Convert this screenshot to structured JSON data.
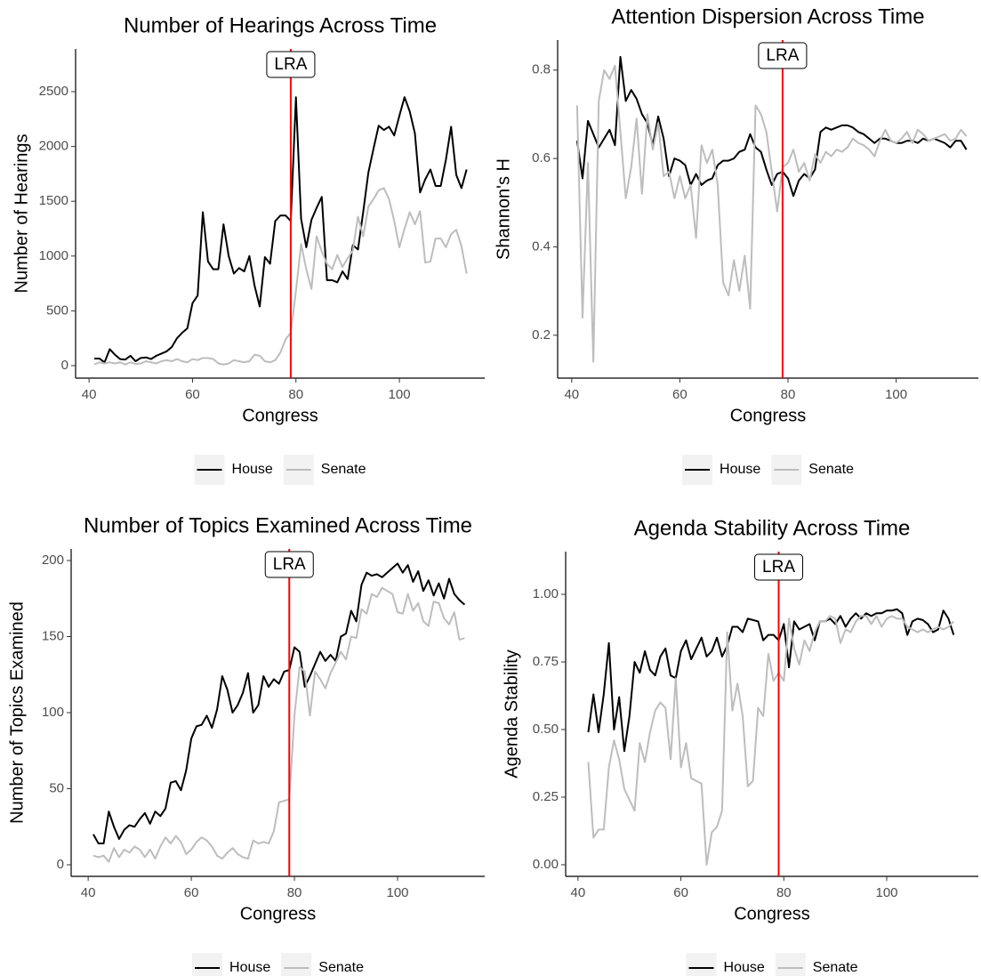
{
  "chart_data": [
    {
      "type": "line",
      "title": "Number of Hearings Across Time",
      "xlabel": "Congress",
      "ylabel": "Number of Hearings",
      "x": [
        41,
        42,
        43,
        44,
        45,
        46,
        47,
        48,
        49,
        50,
        51,
        52,
        53,
        54,
        55,
        56,
        57,
        58,
        59,
        60,
        61,
        62,
        63,
        64,
        65,
        66,
        67,
        68,
        69,
        70,
        71,
        72,
        73,
        74,
        75,
        76,
        77,
        78,
        79,
        80,
        81,
        82,
        83,
        84,
        85,
        86,
        87,
        88,
        89,
        90,
        91,
        92,
        93,
        94,
        95,
        96,
        97,
        98,
        99,
        100,
        101,
        102,
        103,
        104,
        105,
        106,
        107,
        108,
        109,
        110,
        111,
        112,
        113
      ],
      "series": [
        {
          "name": "House",
          "color": "#000000",
          "values": [
            65,
            65,
            30,
            150,
            100,
            60,
            55,
            90,
            40,
            70,
            75,
            60,
            90,
            110,
            130,
            170,
            250,
            300,
            340,
            570,
            640,
            1400,
            950,
            880,
            880,
            1290,
            1000,
            840,
            890,
            860,
            1000,
            730,
            540,
            990,
            930,
            1320,
            1370,
            1370,
            1320,
            2450,
            1340,
            1080,
            1330,
            1440,
            1540,
            780,
            780,
            760,
            860,
            790,
            1100,
            1060,
            1400,
            1760,
            1980,
            2190,
            2150,
            2180,
            2100,
            2280,
            2450,
            2320,
            2120,
            1580,
            1700,
            1790,
            1640,
            1640,
            1880,
            2180,
            1740,
            1620,
            1790
          ]
        },
        {
          "name": "Senate",
          "color": "#bdbdbd",
          "values": [
            10,
            30,
            20,
            30,
            20,
            30,
            10,
            30,
            15,
            20,
            40,
            30,
            20,
            40,
            50,
            40,
            60,
            40,
            30,
            60,
            50,
            70,
            70,
            60,
            20,
            10,
            20,
            50,
            40,
            30,
            40,
            100,
            90,
            40,
            30,
            50,
            120,
            240,
            300,
            680,
            1110,
            880,
            700,
            1180,
            1040,
            930,
            880,
            1010,
            900,
            980,
            1050,
            1360,
            1180,
            1450,
            1520,
            1600,
            1620,
            1520,
            1320,
            1080,
            1250,
            1400,
            1290,
            1410,
            940,
            950,
            1160,
            1160,
            1080,
            1200,
            1240,
            1090,
            840
          ]
        }
      ],
      "xlim": [
        37.4,
        116.5
      ],
      "ylim": [
        -114,
        2890
      ],
      "xticks": [
        40,
        60,
        80,
        100
      ],
      "yticks": [
        0,
        500,
        1000,
        1500,
        2000,
        2500
      ],
      "vline": {
        "x": 79,
        "label": "LRA",
        "color": "#ff0000"
      },
      "legend": "bottom"
    },
    {
      "type": "line",
      "title": "Attention Dispersion Across Time",
      "xlabel": "Congress",
      "ylabel": "Shannon's H",
      "x": [
        41,
        42,
        43,
        44,
        45,
        46,
        47,
        48,
        49,
        50,
        51,
        52,
        53,
        54,
        55,
        56,
        57,
        58,
        59,
        60,
        61,
        62,
        63,
        64,
        65,
        66,
        67,
        68,
        69,
        70,
        71,
        72,
        73,
        74,
        75,
        76,
        77,
        78,
        79,
        80,
        81,
        82,
        83,
        84,
        85,
        86,
        87,
        88,
        89,
        90,
        91,
        92,
        93,
        94,
        95,
        96,
        97,
        98,
        99,
        100,
        101,
        102,
        103,
        104,
        105,
        106,
        107,
        108,
        109,
        110,
        111,
        112,
        113
      ],
      "series": [
        {
          "name": "House",
          "color": "#000000",
          "values": [
            0.64,
            0.555,
            0.685,
            0.655,
            0.625,
            0.645,
            0.665,
            0.63,
            0.83,
            0.73,
            0.755,
            0.735,
            0.7,
            0.68,
            0.63,
            0.695,
            0.645,
            0.56,
            0.6,
            0.595,
            0.585,
            0.54,
            0.565,
            0.54,
            0.55,
            0.555,
            0.585,
            0.595,
            0.595,
            0.6,
            0.615,
            0.62,
            0.655,
            0.625,
            0.615,
            0.575,
            0.54,
            0.565,
            0.57,
            0.555,
            0.515,
            0.55,
            0.565,
            0.555,
            0.575,
            0.66,
            0.67,
            0.665,
            0.67,
            0.675,
            0.675,
            0.67,
            0.66,
            0.655,
            0.645,
            0.635,
            0.645,
            0.645,
            0.64,
            0.635,
            0.635,
            0.64,
            0.64,
            0.635,
            0.645,
            0.64,
            0.645,
            0.64,
            0.635,
            0.625,
            0.64,
            0.64,
            0.62
          ]
        },
        {
          "name": "Senate",
          "color": "#bdbdbd",
          "values": [
            0.72,
            0.24,
            0.59,
            0.14,
            0.73,
            0.8,
            0.78,
            0.81,
            0.66,
            0.51,
            0.58,
            0.69,
            0.52,
            0.7,
            0.62,
            0.68,
            0.56,
            0.57,
            0.51,
            0.56,
            0.51,
            0.54,
            0.42,
            0.63,
            0.59,
            0.62,
            0.54,
            0.32,
            0.29,
            0.37,
            0.3,
            0.38,
            0.26,
            0.72,
            0.7,
            0.66,
            0.57,
            0.48,
            0.58,
            0.59,
            0.62,
            0.57,
            0.59,
            0.55,
            0.61,
            0.59,
            0.615,
            0.605,
            0.62,
            0.615,
            0.625,
            0.645,
            0.635,
            0.63,
            0.62,
            0.605,
            0.64,
            0.665,
            0.64,
            0.635,
            0.645,
            0.66,
            0.635,
            0.665,
            0.655,
            0.64,
            0.645,
            0.65,
            0.655,
            0.64,
            0.645,
            0.665,
            0.65
          ]
        }
      ],
      "xlim": [
        37.4,
        115.2
      ],
      "ylim": [
        0.103,
        0.868
      ],
      "xticks": [
        40,
        60,
        80,
        100
      ],
      "yticks": [
        0.2,
        0.4,
        0.6,
        0.8
      ],
      "vline": {
        "x": 79,
        "label": "LRA",
        "color": "#ff0000"
      },
      "legend": "bottom"
    },
    {
      "type": "line",
      "title": "Number of Topics Examined Across Time",
      "xlabel": "Congress",
      "ylabel": "Number of Topics Examined",
      "x": [
        41,
        42,
        43,
        44,
        45,
        46,
        47,
        48,
        49,
        50,
        51,
        52,
        53,
        54,
        55,
        56,
        57,
        58,
        59,
        60,
        61,
        62,
        63,
        64,
        65,
        66,
        67,
        68,
        69,
        70,
        71,
        72,
        73,
        74,
        75,
        76,
        77,
        78,
        79,
        80,
        81,
        82,
        83,
        84,
        85,
        86,
        87,
        88,
        89,
        90,
        91,
        92,
        93,
        94,
        95,
        96,
        97,
        98,
        99,
        100,
        101,
        102,
        103,
        104,
        105,
        106,
        107,
        108,
        109,
        110,
        111,
        112,
        113
      ],
      "series": [
        {
          "name": "House",
          "color": "#000000",
          "values": [
            20,
            14,
            14,
            35,
            25,
            17,
            23,
            26,
            25,
            30,
            34,
            27,
            35,
            32,
            37,
            54,
            55,
            49,
            62,
            83,
            91,
            92,
            98,
            90,
            102,
            124,
            115,
            100,
            105,
            113,
            126,
            100,
            105,
            124,
            117,
            122,
            119,
            127,
            128,
            143,
            140,
            117,
            124,
            132,
            140,
            134,
            138,
            134,
            150,
            152,
            167,
            160,
            184,
            192,
            190,
            191,
            189,
            192,
            195,
            198,
            192,
            197,
            186,
            193,
            180,
            187,
            177,
            185,
            175,
            188,
            178,
            174,
            171
          ]
        },
        {
          "name": "Senate",
          "color": "#bdbdbd",
          "values": [
            6,
            5,
            6,
            2,
            11,
            5,
            10,
            8,
            12,
            10,
            5,
            10,
            4,
            12,
            18,
            14,
            19,
            15,
            7,
            10,
            15,
            18,
            16,
            12,
            6,
            4,
            8,
            11,
            7,
            5,
            4,
            16,
            14,
            15,
            14,
            22,
            41,
            42,
            43,
            98,
            130,
            127,
            98,
            127,
            122,
            116,
            126,
            133,
            140,
            135,
            150,
            149,
            168,
            165,
            178,
            176,
            182,
            180,
            178,
            166,
            165,
            178,
            167,
            172,
            160,
            157,
            173,
            172,
            162,
            158,
            166,
            148,
            149
          ]
        }
      ],
      "xlim": [
        36.7,
        116.9
      ],
      "ylim": [
        -7.6,
        207.6
      ],
      "xticks": [
        40,
        60,
        80,
        100
      ],
      "yticks": [
        0,
        50,
        100,
        150,
        200
      ],
      "vline": {
        "x": 79,
        "label": "LRA",
        "color": "#ff0000"
      },
      "legend": "bottom"
    },
    {
      "type": "line",
      "title": "Agenda Stability Across Time",
      "xlabel": "Congress",
      "ylabel": "Agenda Stability",
      "x": [
        41,
        42,
        43,
        44,
        45,
        46,
        47,
        48,
        49,
        50,
        51,
        52,
        53,
        54,
        55,
        56,
        57,
        58,
        59,
        60,
        61,
        62,
        63,
        64,
        65,
        66,
        67,
        68,
        69,
        70,
        71,
        72,
        73,
        74,
        75,
        76,
        77,
        78,
        79,
        80,
        81,
        82,
        83,
        84,
        85,
        86,
        87,
        88,
        89,
        90,
        91,
        92,
        93,
        94,
        95,
        96,
        97,
        98,
        99,
        100,
        101,
        102,
        103,
        104,
        105,
        106,
        107,
        108,
        109,
        110,
        111,
        112,
        113
      ],
      "series": [
        {
          "name": "House",
          "color": "#000000",
          "values": [
            null,
            0.49,
            0.63,
            0.49,
            0.63,
            0.82,
            0.5,
            0.62,
            0.42,
            0.55,
            0.75,
            0.71,
            0.79,
            0.72,
            0.7,
            0.77,
            0.8,
            0.7,
            0.69,
            0.79,
            0.83,
            0.76,
            0.8,
            0.84,
            0.77,
            0.79,
            0.84,
            0.77,
            0.81,
            0.88,
            0.88,
            0.86,
            0.91,
            0.905,
            0.9,
            0.83,
            0.85,
            0.85,
            0.83,
            0.89,
            0.73,
            0.9,
            0.87,
            0.88,
            0.89,
            0.83,
            0.9,
            0.9,
            0.91,
            0.89,
            0.92,
            0.88,
            0.91,
            0.93,
            0.91,
            0.93,
            0.92,
            0.93,
            0.93,
            0.94,
            0.94,
            0.945,
            0.93,
            0.85,
            0.9,
            0.91,
            0.905,
            0.89,
            0.86,
            0.87,
            0.94,
            0.91,
            0.85
          ]
        },
        {
          "name": "Senate",
          "color": "#bdbdbd",
          "values": [
            null,
            0.38,
            0.1,
            0.13,
            0.13,
            0.36,
            0.46,
            0.39,
            0.28,
            0.24,
            0.2,
            0.45,
            0.38,
            0.49,
            0.57,
            0.6,
            0.58,
            0.39,
            0.69,
            0.36,
            0.45,
            0.32,
            0.31,
            0.3,
            0,
            0.12,
            0.14,
            0.2,
            0.86,
            0.57,
            0.67,
            0.55,
            0.29,
            0.31,
            0.58,
            0.55,
            0.78,
            0.68,
            0.71,
            0.68,
            0.91,
            0.8,
            0.74,
            0.83,
            0.79,
            0.86,
            0.9,
            0.9,
            0.92,
            0.91,
            0.82,
            0.87,
            0.86,
            0.9,
            0.92,
            0.92,
            0.89,
            0.92,
            0.88,
            0.91,
            0.92,
            0.91,
            0.91,
            0.88,
            0.87,
            0.86,
            0.87,
            0.86,
            0.87,
            0.88,
            0.87,
            0.88,
            0.9
          ]
        }
      ],
      "xlim": [
        37.6,
        117.8
      ],
      "ylim": [
        -0.043,
        1.158
      ],
      "xticks": [
        40,
        60,
        80,
        100
      ],
      "yticks": [
        {
          "value": 0,
          "label": "0.00"
        },
        {
          "value": 0.25,
          "label": "0.25"
        },
        {
          "value": 0.5,
          "label": "0.50"
        },
        {
          "value": 0.75,
          "label": "0.75"
        },
        {
          "value": 1,
          "label": "1.00"
        }
      ],
      "vline": {
        "x": 79,
        "label": "LRA",
        "color": "#ff0000"
      },
      "legend": "bottom"
    }
  ]
}
